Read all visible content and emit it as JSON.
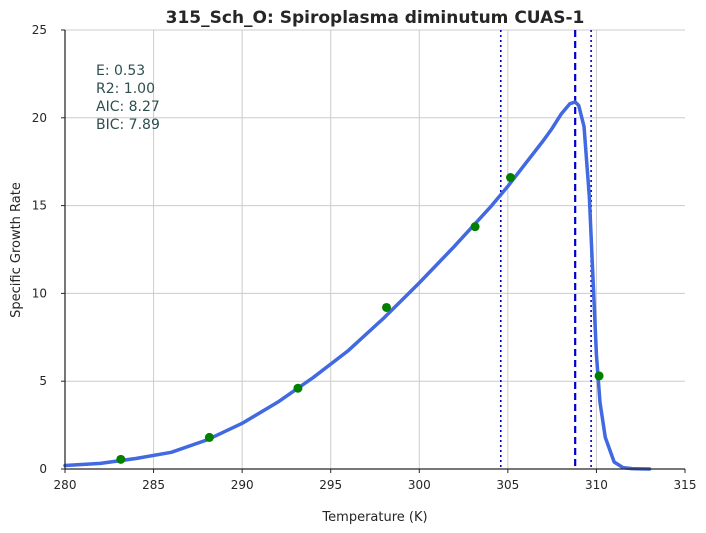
{
  "chart_data": {
    "type": "line",
    "title": "315_Sch_O: Spiroplasma diminutum CUAS-1",
    "xlabel": "Temperature (K)",
    "ylabel": "Specific Growth Rate",
    "xlim": [
      280,
      315
    ],
    "ylim": [
      0,
      25
    ],
    "xticks": [
      "280",
      "285",
      "290",
      "295",
      "300",
      "305",
      "310",
      "315"
    ],
    "yticks": [
      "0",
      "5",
      "10",
      "15",
      "20",
      "25"
    ],
    "grid": true,
    "stats": [
      "E:  0.53",
      "R2:  1.00",
      "AIC: 8.27",
      "BIC: 7.89"
    ],
    "series": [
      {
        "kind": "line",
        "color": "#4169e1",
        "x": [
          280,
          282,
          284,
          286,
          288,
          290,
          292,
          294,
          296,
          298,
          300,
          302,
          304,
          305,
          306,
          307,
          307.5,
          308,
          308.5,
          308.8,
          309,
          309.3,
          309.6,
          309.8,
          310,
          310.2,
          310.5,
          311,
          311.5,
          312,
          313
        ],
        "y": [
          0.2,
          0.32,
          0.6,
          0.95,
          1.65,
          2.6,
          3.8,
          5.2,
          6.75,
          8.6,
          10.6,
          12.7,
          14.9,
          16.1,
          17.4,
          18.7,
          19.4,
          20.2,
          20.8,
          20.9,
          20.7,
          19.5,
          15.5,
          11.0,
          6.5,
          3.8,
          1.8,
          0.4,
          0.08,
          0.02,
          0.0
        ]
      },
      {
        "kind": "scatter",
        "color": "#008000",
        "x": [
          283.15,
          288.15,
          293.15,
          298.15,
          303.15,
          305.15,
          310.15
        ],
        "y": [
          0.55,
          1.8,
          4.6,
          9.2,
          13.8,
          16.6,
          5.3
        ]
      }
    ],
    "vlines": [
      {
        "x": 308.8,
        "style": "dashed",
        "color": "#0000cd"
      },
      {
        "x": 304.6,
        "style": "dotted",
        "color": "#0000cd"
      },
      {
        "x": 309.7,
        "style": "dotted",
        "color": "#0000cd"
      }
    ]
  }
}
